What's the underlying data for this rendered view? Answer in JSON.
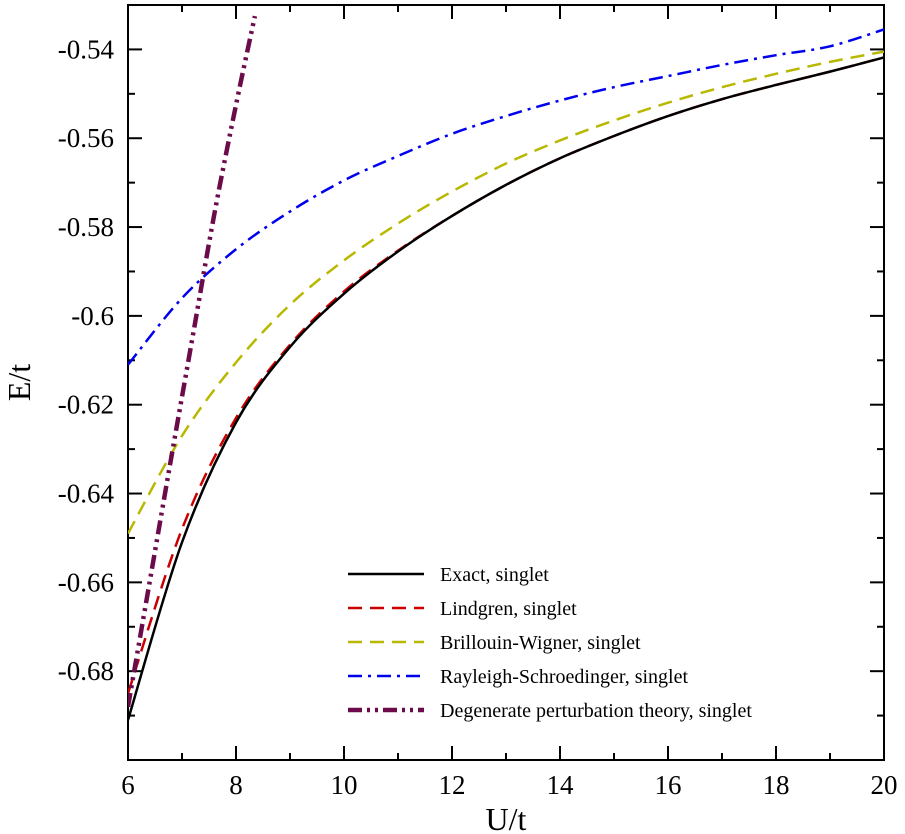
{
  "chart_data": {
    "type": "line",
    "title": "",
    "xlabel": "U/t",
    "ylabel": "E/t",
    "xlim": [
      6,
      20
    ],
    "ylim": [
      -0.7,
      -0.53
    ],
    "grid": false,
    "legend_position": "bottom-right",
    "x_ticks": [
      6,
      8,
      10,
      12,
      14,
      16,
      18,
      20
    ],
    "x_tick_labels": [
      "6",
      "8",
      "10",
      "12",
      "14",
      "16",
      "18",
      "20"
    ],
    "y_ticks": [
      -0.68,
      -0.66,
      -0.64,
      -0.62,
      -0.6,
      -0.58,
      -0.56,
      -0.54
    ],
    "y_tick_labels": [
      "-0.68",
      "-0.66",
      "-0.64",
      "-0.62",
      "-0.6",
      "-0.58",
      "-0.56",
      "-0.54"
    ],
    "series": [
      {
        "name": "Exact, singlet",
        "color": "#000000",
        "dash": "solid",
        "x": [
          6,
          7,
          8,
          9,
          10,
          11,
          12,
          13,
          14,
          15,
          16,
          17,
          18,
          19,
          20
        ],
        "y": [
          -0.691,
          -0.651,
          -0.624,
          -0.607,
          -0.595,
          -0.5855,
          -0.5775,
          -0.5705,
          -0.5645,
          -0.5595,
          -0.555,
          -0.5512,
          -0.548,
          -0.545,
          -0.5418
        ]
      },
      {
        "name": "Lindgren, singlet",
        "color": "#cc0000",
        "dash": "dash",
        "x": [
          6,
          7,
          8,
          9,
          10,
          11,
          12,
          13,
          14,
          15,
          16,
          17,
          18,
          19,
          20
        ],
        "y": [
          -0.685,
          -0.648,
          -0.623,
          -0.6065,
          -0.5945,
          -0.5853,
          -0.5775,
          -0.5705,
          -0.5645,
          -0.5595,
          -0.555,
          -0.5512,
          -0.548,
          -0.545,
          -0.5418
        ]
      },
      {
        "name": "Brillouin-Wigner, singlet",
        "color": "#b8b800",
        "dash": "dash",
        "x": [
          6,
          7,
          8,
          9,
          10,
          11,
          12,
          13,
          14,
          15,
          16,
          17,
          18,
          19,
          20
        ],
        "y": [
          -0.649,
          -0.627,
          -0.6105,
          -0.5975,
          -0.5875,
          -0.5792,
          -0.572,
          -0.5657,
          -0.5605,
          -0.556,
          -0.552,
          -0.5485,
          -0.5455,
          -0.5428,
          -0.5405
        ]
      },
      {
        "name": "Rayleigh-Schroedinger, singlet",
        "color": "#0000ee",
        "dash": "dashdot",
        "x": [
          6,
          7,
          8,
          9,
          10,
          11,
          12,
          13,
          14,
          15,
          16,
          17,
          18,
          19,
          20
        ],
        "y": [
          -0.611,
          -0.596,
          -0.585,
          -0.5765,
          -0.5695,
          -0.564,
          -0.559,
          -0.555,
          -0.5515,
          -0.5485,
          -0.546,
          -0.5435,
          -0.5413,
          -0.5393,
          -0.5355
        ]
      },
      {
        "name": "Degenerate perturbation theory, singlet",
        "color": "#6b0b4a",
        "dash": "dashdotdot",
        "x": [
          6,
          6.4,
          6.8,
          7.2,
          7.6,
          8.0,
          8.35
        ],
        "y": [
          -0.688,
          -0.66,
          -0.632,
          -0.6045,
          -0.577,
          -0.5525,
          -0.5325
        ]
      }
    ]
  }
}
